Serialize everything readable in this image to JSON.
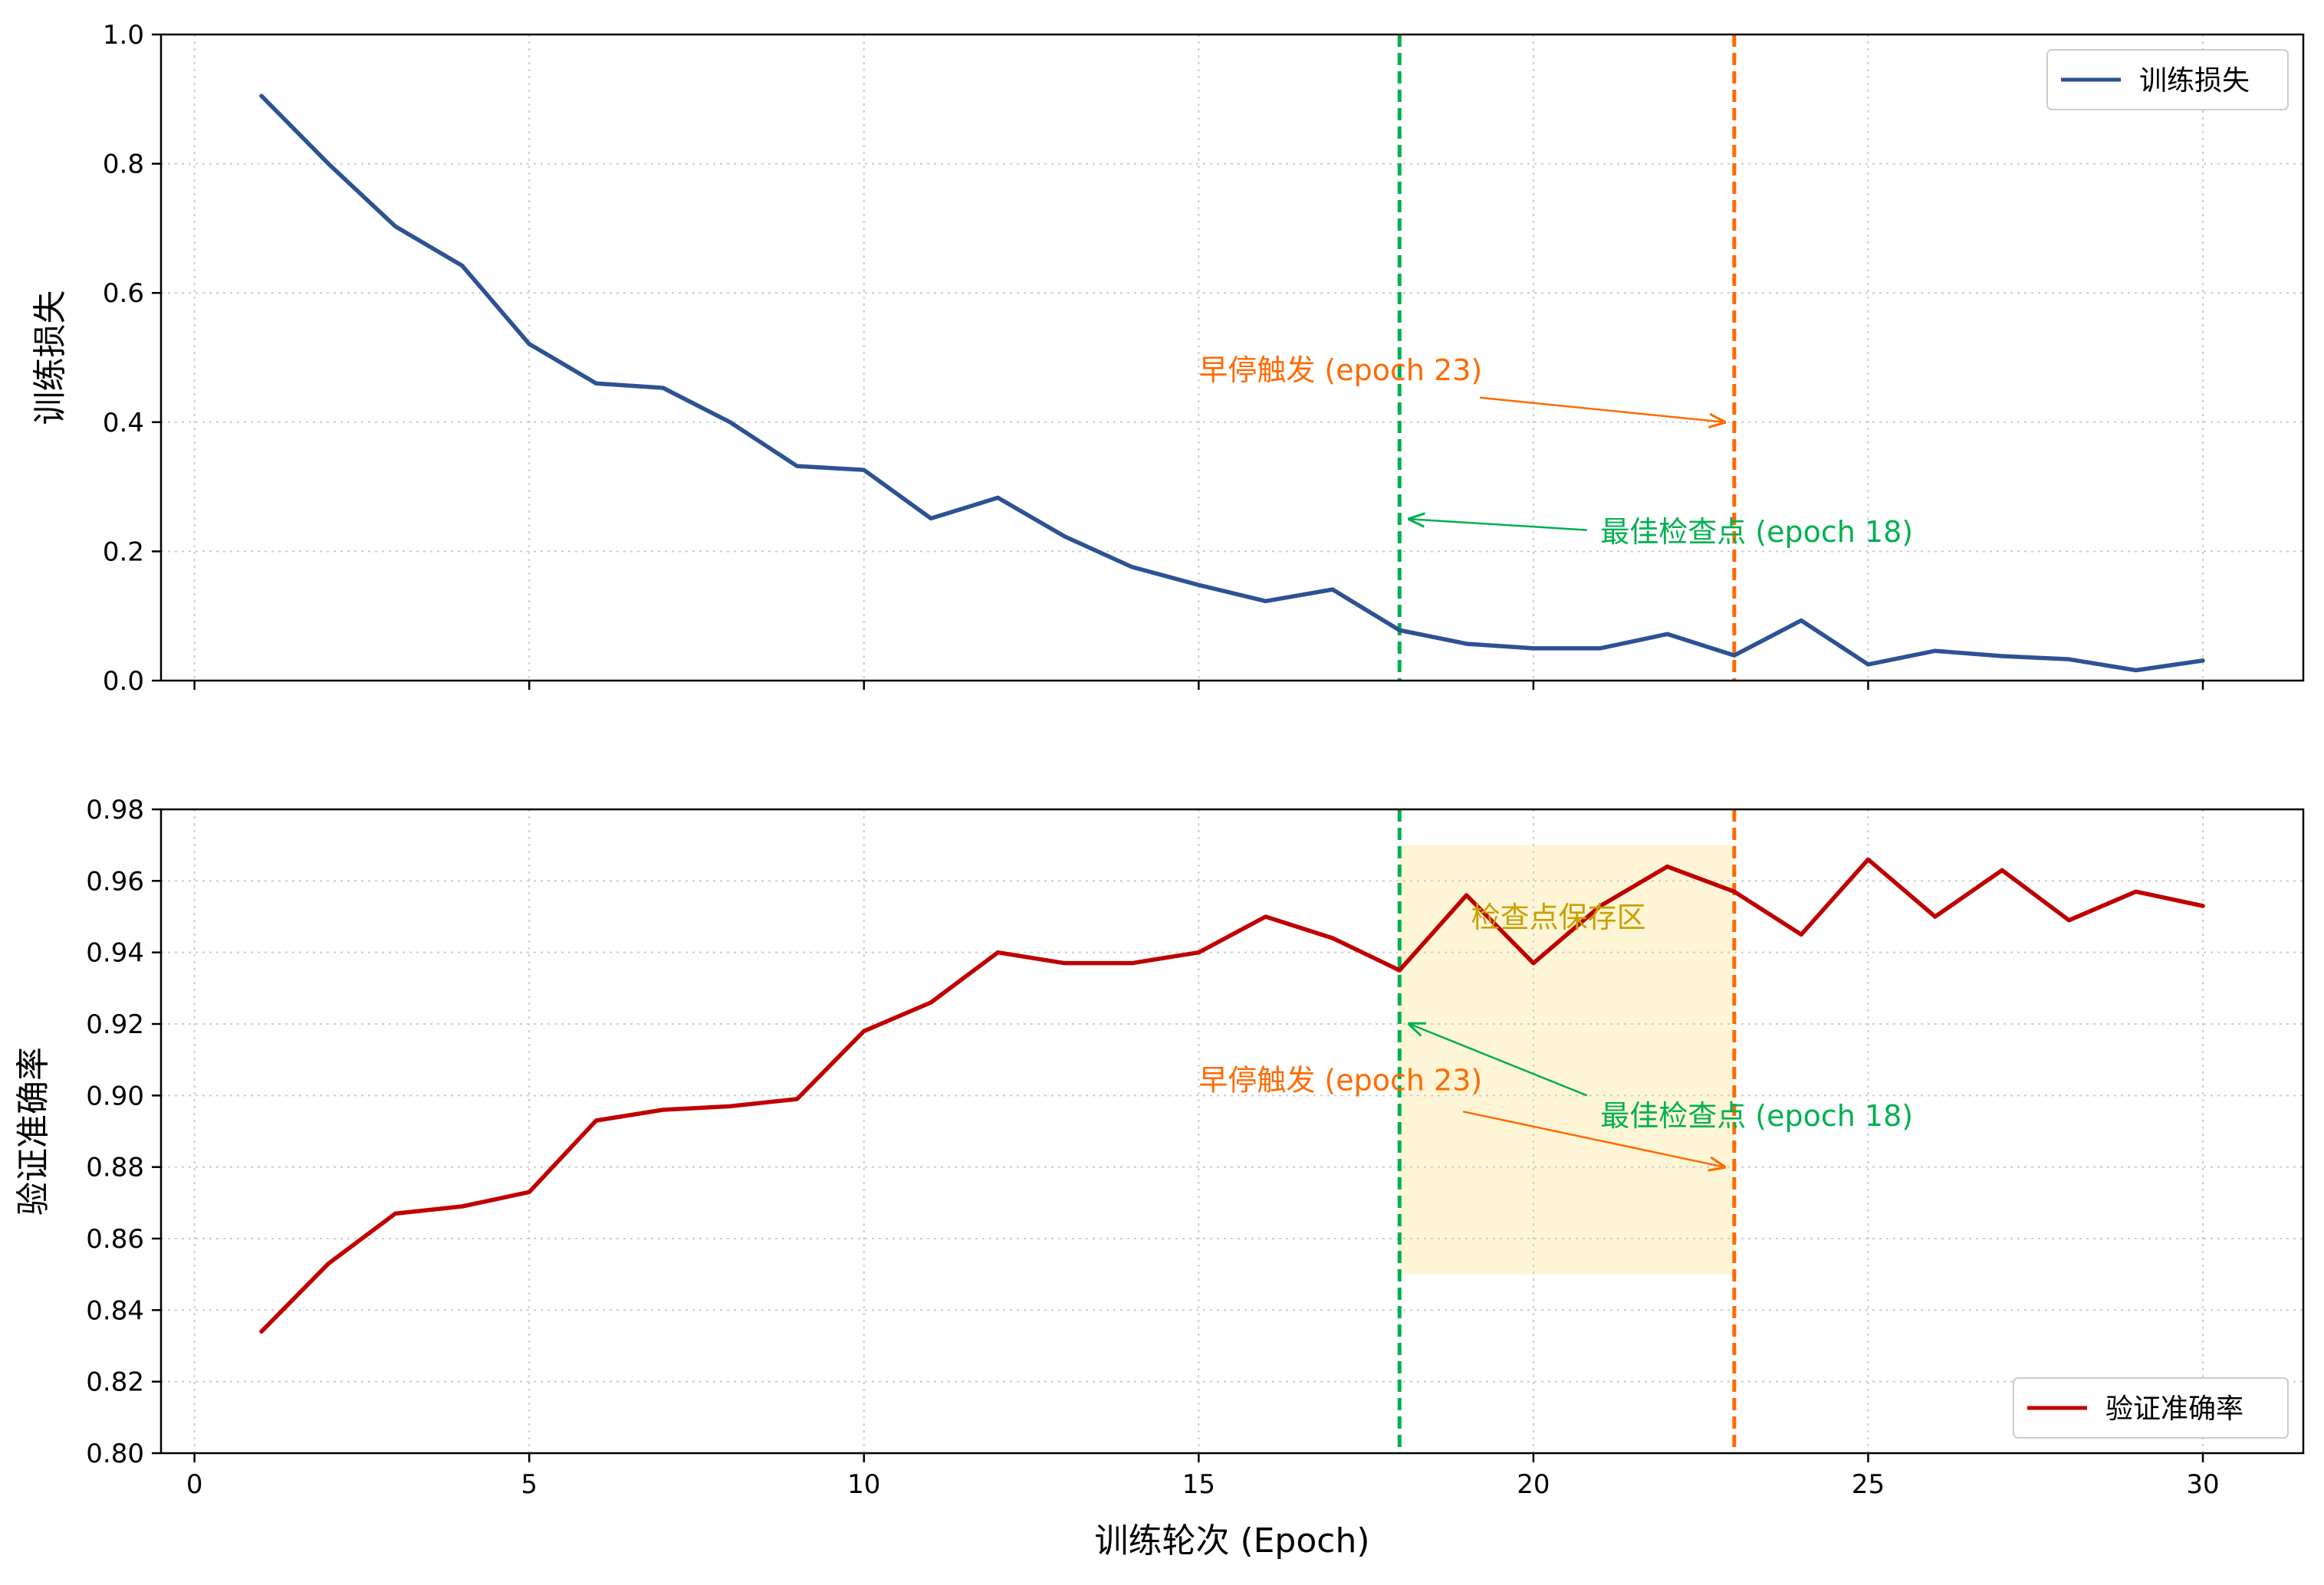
{
  "chart_data": [
    {
      "type": "line",
      "title": "",
      "xlabel": "",
      "ylabel": "训练损失",
      "xlim": [
        -0.5,
        31.5
      ],
      "ylim": [
        0.0,
        1.0
      ],
      "xticks": [
        0,
        5,
        10,
        15,
        20,
        25,
        30
      ],
      "yticks": [
        "0.0",
        "0.2",
        "0.4",
        "0.6",
        "0.8",
        "1.0"
      ],
      "show_xtick_labels": false,
      "grid": true,
      "legend_position": "top-right",
      "series": [
        {
          "name": "训练损失",
          "color": "#2c5293",
          "x": [
            1,
            2,
            3,
            4,
            5,
            6,
            7,
            8,
            9,
            10,
            11,
            12,
            13,
            14,
            15,
            16,
            17,
            18,
            19,
            20,
            21,
            22,
            23,
            24,
            25,
            26,
            27,
            28,
            29,
            30
          ],
          "y": [
            0.905,
            0.8,
            0.703,
            0.642,
            0.521,
            0.46,
            0.453,
            0.4,
            0.332,
            0.326,
            0.251,
            0.283,
            0.223,
            0.176,
            0.148,
            0.123,
            0.141,
            0.078,
            0.057,
            0.05,
            0.05,
            0.072,
            0.039,
            0.093,
            0.025,
            0.046,
            0.038,
            0.033,
            0.016,
            0.031
          ]
        }
      ],
      "vlines": [
        {
          "x": 18,
          "color": "#00b050"
        },
        {
          "x": 23,
          "color": "#ff6a00"
        }
      ],
      "annotations": [
        {
          "text": "早停触发 (epoch 23)",
          "color": "#ff6a00",
          "text_x": 15.0,
          "text_y": 0.465,
          "arrow_from_x": 19.2,
          "arrow_from_y": 0.438,
          "arrow_to_x": 22.85,
          "arrow_to_y": 0.4
        },
        {
          "text": "最佳检查点 (epoch 18)",
          "color": "#00b050",
          "text_x": 21.0,
          "text_y": 0.215,
          "arrow_from_x": 20.8,
          "arrow_from_y": 0.233,
          "arrow_to_x": 18.15,
          "arrow_to_y": 0.25
        }
      ]
    },
    {
      "type": "line",
      "title": "",
      "xlabel": "训练轮次 (Epoch)",
      "ylabel": "验证准确率",
      "xlim": [
        -0.5,
        31.5
      ],
      "ylim": [
        0.8,
        0.98
      ],
      "xticks": [
        0,
        5,
        10,
        15,
        20,
        25,
        30
      ],
      "yticks": [
        "0.80",
        "0.82",
        "0.84",
        "0.86",
        "0.88",
        "0.90",
        "0.92",
        "0.94",
        "0.96",
        "0.98"
      ],
      "show_xtick_labels": true,
      "grid": true,
      "legend_position": "bottom-right",
      "series": [
        {
          "name": "验证准确率",
          "color": "#c00000",
          "x": [
            1,
            2,
            3,
            4,
            5,
            6,
            7,
            8,
            9,
            10,
            11,
            12,
            13,
            14,
            15,
            16,
            17,
            18,
            19,
            20,
            21,
            22,
            23,
            24,
            25,
            26,
            27,
            28,
            29,
            30
          ],
          "y": [
            0.834,
            0.853,
            0.867,
            0.869,
            0.873,
            0.893,
            0.896,
            0.897,
            0.899,
            0.918,
            0.926,
            0.94,
            0.937,
            0.937,
            0.94,
            0.95,
            0.944,
            0.935,
            0.956,
            0.937,
            0.953,
            0.964,
            0.957,
            0.945,
            0.966,
            0.95,
            0.963,
            0.949,
            0.957,
            0.953
          ]
        }
      ],
      "vlines": [
        {
          "x": 18,
          "color": "#00b050"
        },
        {
          "x": 23,
          "color": "#ff6a00"
        }
      ],
      "shaded_region": {
        "x0": 18,
        "x1": 23,
        "y0": 0.85,
        "y1": 0.97,
        "color": "#fdf5d6",
        "label": "检查点保存区",
        "label_color": "#c9a000",
        "label_x": 19.0,
        "label_y": 0.947
      },
      "annotations": [
        {
          "text": "最佳检查点 (epoch 18)",
          "color": "#00b050",
          "text_x": 21.0,
          "text_y": 0.8915,
          "arrow_from_x": 20.8,
          "arrow_from_y": 0.9,
          "arrow_to_x": 18.15,
          "arrow_to_y": 0.92
        },
        {
          "text": "早停触发 (epoch 23)",
          "color": "#ff6a00",
          "text_x": 15.0,
          "text_y": 0.9015,
          "arrow_from_x": 18.95,
          "arrow_from_y": 0.8955,
          "arrow_to_x": 22.85,
          "arrow_to_y": 0.88
        }
      ]
    }
  ]
}
